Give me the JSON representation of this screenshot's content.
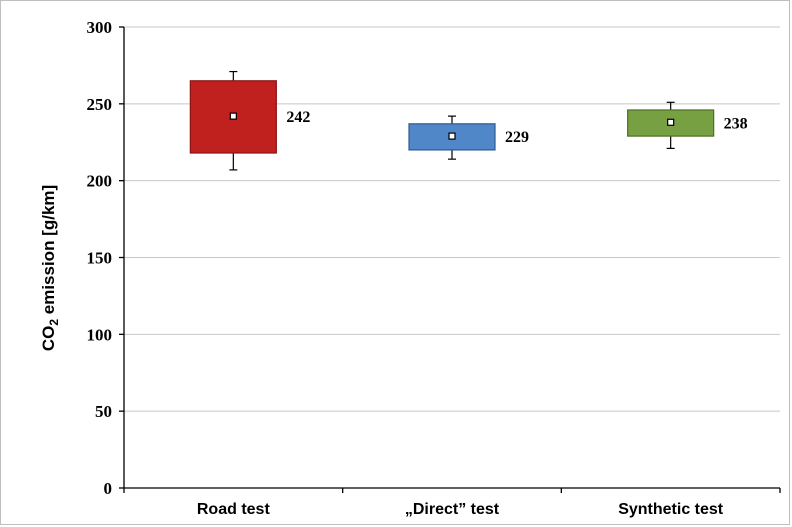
{
  "chart_data": {
    "type": "box",
    "title": "",
    "ylabel": {
      "prefix": "CO",
      "subscript": "2",
      "suffix": " emission [g/km]"
    },
    "xlabel": "",
    "ylim": [
      0,
      300
    ],
    "yticks": [
      0,
      50,
      100,
      150,
      200,
      250,
      300
    ],
    "grid": "horizontal",
    "legend": "none",
    "categories": [
      "Road test",
      "„Direct” test",
      "Synthetic test"
    ],
    "boxes": [
      {
        "category": "Road test",
        "mean": 242,
        "mean_label": "242",
        "q1": 218,
        "q3": 265,
        "whisker_low": 207,
        "whisker_high": 271,
        "color": "#c0211f",
        "edge": "#8b1414"
      },
      {
        "category": "„Direct” test",
        "mean": 229,
        "mean_label": "229",
        "q1": 220,
        "q3": 237,
        "whisker_low": 214,
        "whisker_high": 242,
        "color": "#4f87c9",
        "edge": "#2e5b8f"
      },
      {
        "category": "Synthetic test",
        "mean": 238,
        "mean_label": "238",
        "q1": 229,
        "q3": 246,
        "whisker_low": 221,
        "whisker_high": 251,
        "color": "#77a043",
        "edge": "#4d6e27"
      }
    ]
  }
}
